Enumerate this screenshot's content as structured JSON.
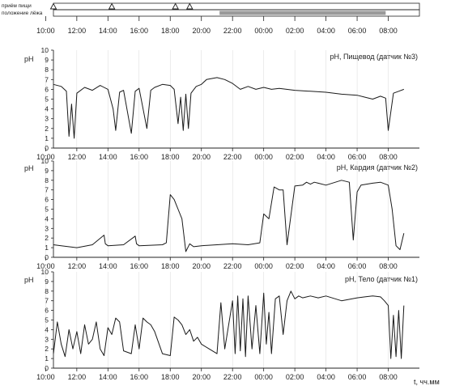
{
  "strip": {
    "meals_label": "приём пищи",
    "supine_label": "положение лёжа",
    "meal_times": [
      "10:30",
      "14:15",
      "18:20",
      "19:15"
    ],
    "supine_period": [
      "21:10",
      "07:50"
    ]
  },
  "time_labels": [
    "12:00",
    "14:00",
    "16:00",
    "18:00",
    "20:00",
    "22:00",
    "00:00",
    "02:00",
    "04:00",
    "06:00",
    "08:00",
    "10:00"
  ],
  "x_axis_label": "t, чч.мм",
  "colors": {
    "trace": "#1a1a1a",
    "grid": "#d9d9d9",
    "supine_bar": "#9a9a9a"
  },
  "chart_data": [
    {
      "type": "line",
      "title": "pH, Пищевод (датчик №3)",
      "ylabel": "pH",
      "ylim": [
        0,
        10
      ],
      "yticks": [
        0,
        1,
        2,
        3,
        4,
        5,
        6,
        7,
        8,
        9,
        10
      ],
      "xlim": [
        "10:30",
        "10:00+1"
      ],
      "grid": true,
      "series": [
        {
          "x": [
            "10:30",
            "11:00",
            "11:20",
            "11:30",
            "11:40",
            "11:50",
            "12:00",
            "12:30",
            "13:00",
            "13:30",
            "14:00",
            "14:20",
            "14:30",
            "14:45",
            "15:00",
            "15:30",
            "15:45",
            "16:00",
            "16:30",
            "16:45",
            "17:00",
            "17:30",
            "18:00",
            "18:15",
            "18:30",
            "18:40",
            "18:50",
            "19:00",
            "19:10",
            "19:20",
            "19:40",
            "20:00",
            "20:20",
            "21:00",
            "21:30",
            "22:00",
            "22:30",
            "23:00",
            "23:30",
            "00:00",
            "00:30",
            "01:00",
            "02:00",
            "03:00",
            "04:00",
            "05:00",
            "06:00",
            "06:30",
            "07:00",
            "07:30",
            "07:50",
            "08:00",
            "08:20",
            "08:40",
            "09:00"
          ],
          "y": [
            6.5,
            6.3,
            5.8,
            1.2,
            4.5,
            1.0,
            5.6,
            6.2,
            5.9,
            6.4,
            6.0,
            4.0,
            1.8,
            5.7,
            5.9,
            1.5,
            5.8,
            6.1,
            2.0,
            5.9,
            6.2,
            6.5,
            6.4,
            6.0,
            2.5,
            5.2,
            1.8,
            5.5,
            2.0,
            5.6,
            6.3,
            6.5,
            7.0,
            7.2,
            7.0,
            6.6,
            6.0,
            6.3,
            6.0,
            6.2,
            6.0,
            6.1,
            5.9,
            5.8,
            5.7,
            5.5,
            5.4,
            5.2,
            5.0,
            5.3,
            5.1,
            1.8,
            5.6,
            5.8,
            6.0
          ]
        }
      ]
    },
    {
      "type": "line",
      "title": "pH, Кардия (датчик №2)",
      "ylabel": "pH",
      "ylim": [
        0,
        10
      ],
      "yticks": [
        0,
        1,
        2,
        3,
        4,
        5,
        6,
        7,
        8,
        9,
        10
      ],
      "xlim": [
        "10:30",
        "10:00+1"
      ],
      "grid": true,
      "series": [
        {
          "x": [
            "10:30",
            "11:00",
            "12:00",
            "13:00",
            "13:45",
            "13:50",
            "14:00",
            "15:00",
            "15:45",
            "15:50",
            "16:00",
            "17:30",
            "17:45",
            "18:00",
            "18:15",
            "18:30",
            "18:45",
            "19:00",
            "19:15",
            "19:30",
            "20:00",
            "21:00",
            "22:00",
            "23:00",
            "23:45",
            "00:00",
            "00:20",
            "00:40",
            "01:00",
            "01:15",
            "01:30",
            "02:00",
            "02:30",
            "02:45",
            "03:00",
            "03:15",
            "03:30",
            "04:00",
            "05:00",
            "05:30",
            "05:45",
            "06:00",
            "06:15",
            "07:00",
            "07:30",
            "08:00",
            "08:15",
            "08:30",
            "08:45",
            "09:00"
          ],
          "y": [
            1.3,
            1.2,
            1.0,
            1.3,
            2.3,
            1.4,
            1.2,
            1.3,
            2.2,
            1.4,
            1.2,
            1.3,
            1.5,
            6.5,
            6.0,
            5.0,
            4.0,
            0.6,
            1.4,
            1.1,
            1.2,
            1.3,
            1.4,
            1.3,
            1.5,
            4.5,
            4.0,
            7.3,
            7.0,
            7.0,
            1.3,
            7.4,
            7.5,
            7.8,
            7.6,
            7.8,
            7.7,
            7.5,
            8.0,
            7.8,
            1.8,
            6.8,
            7.5,
            7.7,
            7.8,
            7.5,
            5.0,
            1.2,
            0.8,
            2.5
          ]
        }
      ]
    },
    {
      "type": "line",
      "title": "pH, Тело (датчик №1)",
      "ylabel": "pH",
      "ylim": [
        0,
        10
      ],
      "yticks": [
        0,
        1,
        2,
        3,
        4,
        5,
        6,
        7,
        8,
        9,
        10
      ],
      "xlim": [
        "10:30",
        "10:00+1"
      ],
      "grid": true,
      "series": [
        {
          "x": [
            "10:30",
            "10:45",
            "11:00",
            "11:15",
            "11:30",
            "11:45",
            "12:00",
            "12:15",
            "12:30",
            "12:45",
            "13:00",
            "13:15",
            "13:30",
            "13:45",
            "14:00",
            "14:15",
            "14:30",
            "14:45",
            "15:00",
            "15:30",
            "15:45",
            "16:00",
            "16:15",
            "16:30",
            "16:45",
            "17:00",
            "17:30",
            "18:00",
            "18:15",
            "18:30",
            "18:45",
            "19:00",
            "19:15",
            "19:30",
            "19:45",
            "20:00",
            "20:30",
            "21:00",
            "21:15",
            "21:30",
            "22:00",
            "22:10",
            "22:20",
            "22:30",
            "22:40",
            "22:50",
            "23:00",
            "23:15",
            "23:30",
            "23:45",
            "00:00",
            "00:10",
            "00:20",
            "00:30",
            "00:45",
            "01:00",
            "01:15",
            "01:30",
            "01:45",
            "02:00",
            "02:15",
            "02:30",
            "03:00",
            "03:30",
            "04:00",
            "05:00",
            "06:00",
            "06:30",
            "07:00",
            "07:30",
            "07:45",
            "08:00",
            "08:10",
            "08:20",
            "08:30",
            "08:40",
            "08:50",
            "09:00"
          ],
          "y": [
            1.5,
            4.8,
            2.5,
            1.2,
            4.0,
            2.0,
            3.8,
            1.5,
            4.5,
            2.5,
            3.0,
            4.8,
            2.0,
            1.3,
            4.2,
            3.5,
            5.2,
            4.8,
            1.8,
            1.5,
            4.5,
            2.0,
            5.2,
            4.8,
            4.5,
            3.8,
            1.5,
            1.3,
            5.3,
            5.0,
            4.5,
            3.5,
            4.0,
            2.8,
            3.2,
            2.5,
            2.0,
            1.5,
            6.8,
            2.0,
            7.0,
            1.5,
            7.5,
            1.8,
            7.2,
            1.2,
            7.5,
            2.0,
            6.5,
            1.5,
            7.8,
            2.5,
            5.8,
            1.5,
            7.2,
            7.5,
            3.5,
            7.0,
            8.0,
            7.2,
            7.5,
            7.3,
            7.5,
            7.3,
            7.5,
            7.0,
            7.3,
            7.4,
            7.5,
            7.4,
            7.0,
            6.5,
            1.0,
            5.5,
            1.2,
            6.0,
            1.0,
            6.5
          ]
        }
      ]
    }
  ]
}
